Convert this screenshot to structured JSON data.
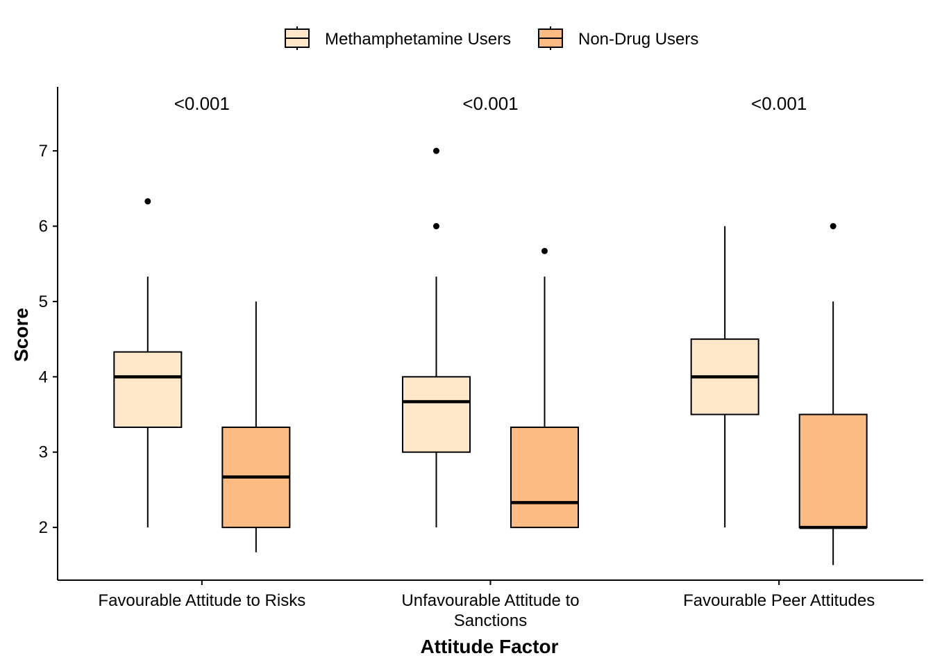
{
  "chart_data": {
    "type": "boxplot",
    "xlabel": "Attitude Factor",
    "ylabel": "Score",
    "ylim": [
      1.3,
      7.85
    ],
    "yticks": [
      2,
      3,
      4,
      5,
      6,
      7
    ],
    "legend_position": "top",
    "categories": [
      [
        "Favourable Attitude to Risks"
      ],
      [
        "Unfavourable Attitude to",
        "Sanctions"
      ],
      [
        "Favourable Peer Attitudes"
      ]
    ],
    "annotations": [
      "<0.001",
      "<0.001",
      "<0.001"
    ],
    "series": [
      {
        "name": "Methamphetamine Users",
        "color": "#FEE8C9",
        "boxes": [
          {
            "low": 2.0,
            "q1": 3.33,
            "median": 4.0,
            "q3": 4.33,
            "high": 5.33,
            "outliers": [
              6.33
            ]
          },
          {
            "low": 2.0,
            "q1": 3.0,
            "median": 3.67,
            "q3": 4.0,
            "high": 5.33,
            "outliers": [
              6.0,
              7.0
            ]
          },
          {
            "low": 2.0,
            "q1": 3.5,
            "median": 4.0,
            "q3": 4.5,
            "high": 6.0,
            "outliers": []
          }
        ]
      },
      {
        "name": "Non-Drug Users",
        "color": "#FDBB84",
        "boxes": [
          {
            "low": 1.67,
            "q1": 2.0,
            "median": 2.67,
            "q3": 3.33,
            "high": 5.0,
            "outliers": []
          },
          {
            "low": 2.0,
            "q1": 2.0,
            "median": 2.33,
            "q3": 3.33,
            "high": 5.33,
            "outliers": [
              5.67
            ]
          },
          {
            "low": 1.5,
            "q1": 2.0,
            "median": 2.0,
            "q3": 3.5,
            "high": 5.0,
            "outliers": [
              6.0
            ]
          }
        ]
      }
    ]
  }
}
